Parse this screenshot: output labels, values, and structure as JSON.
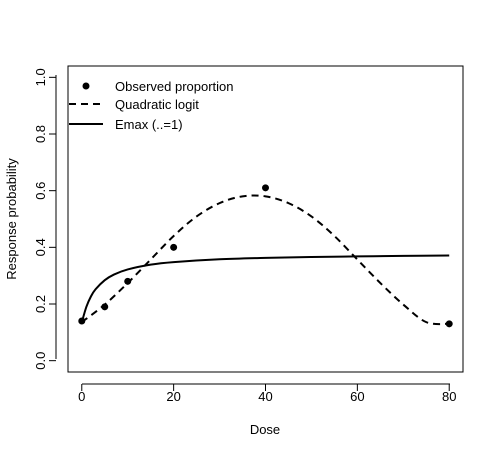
{
  "chart_data": {
    "type": "line",
    "xlabel": "Dose",
    "ylabel": "Response probability",
    "xlim": [
      -3,
      83
    ],
    "ylim": [
      -0.04,
      1.04
    ],
    "xticks": [
      0,
      20,
      40,
      60,
      80
    ],
    "yticks": [
      0.0,
      0.2,
      0.4,
      0.6,
      0.8,
      1.0
    ],
    "xtick_labels": [
      "0",
      "20",
      "40",
      "60",
      "80"
    ],
    "ytick_labels": [
      "0.0",
      "0.2",
      "0.4",
      "0.6",
      "0.8",
      "1.0"
    ],
    "legend_position": "top-left",
    "series": [
      {
        "name": "Observed proportion",
        "kind": "points",
        "x": [
          0,
          5,
          10,
          20,
          40,
          80
        ],
        "y": [
          0.14,
          0.19,
          0.28,
          0.4,
          0.61,
          0.13
        ]
      },
      {
        "name": "Quadratic logit",
        "kind": "dashed",
        "x": [
          0,
          5,
          10,
          15,
          20,
          25,
          30,
          35,
          40,
          45,
          50,
          55,
          60,
          65,
          70,
          75,
          80
        ],
        "y": [
          0.136,
          0.198,
          0.274,
          0.357,
          0.44,
          0.509,
          0.556,
          0.58,
          0.58,
          0.556,
          0.509,
          0.44,
          0.357,
          0.274,
          0.198,
          0.136,
          0.13
        ]
      },
      {
        "name": "Emax (..=1)",
        "kind": "solid",
        "x": [
          0,
          1,
          2,
          3,
          5,
          7,
          10,
          15,
          20,
          30,
          40,
          50,
          60,
          70,
          80
        ],
        "y": [
          0.135,
          0.19,
          0.227,
          0.252,
          0.284,
          0.304,
          0.322,
          0.339,
          0.348,
          0.358,
          0.363,
          0.366,
          0.368,
          0.37,
          0.371
        ]
      }
    ]
  }
}
